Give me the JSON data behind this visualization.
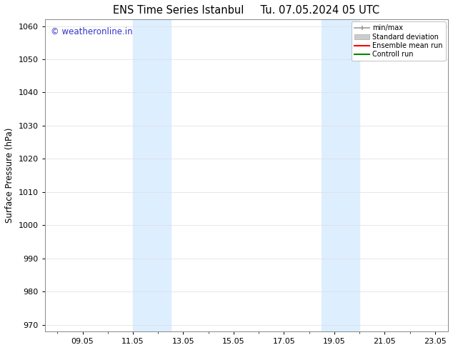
{
  "title": "ENS Time Series Istanbul     Tu. 07.05.2024 05 UTC",
  "ylabel": "Surface Pressure (hPa)",
  "ylim": [
    968,
    1062
  ],
  "yticks": [
    970,
    980,
    990,
    1000,
    1010,
    1020,
    1030,
    1040,
    1050,
    1060
  ],
  "xlim": [
    7.5,
    23.5
  ],
  "xtick_labels": [
    "09.05",
    "11.05",
    "13.05",
    "15.05",
    "17.05",
    "19.05",
    "21.05",
    "23.05"
  ],
  "xtick_positions": [
    9,
    11,
    13,
    15,
    17,
    19,
    21,
    23
  ],
  "shaded_bands": [
    {
      "x_start": 11.0,
      "x_end": 12.5,
      "color": "#ddeeff"
    },
    {
      "x_start": 18.5,
      "x_end": 20.0,
      "color": "#ddeeff"
    }
  ],
  "watermark_text": "© weatheronline.in",
  "watermark_color": "#3333cc",
  "watermark_fontsize": 8.5,
  "legend_items": [
    {
      "label": "min/max",
      "color": "#999999",
      "lw": 1.2,
      "style": "line_with_bars"
    },
    {
      "label": "Standard deviation",
      "color": "#cccccc",
      "lw": 5,
      "style": "thick"
    },
    {
      "label": "Ensemble mean run",
      "color": "#ff0000",
      "lw": 1.5,
      "style": "line"
    },
    {
      "label": "Controll run",
      "color": "#008800",
      "lw": 1.5,
      "style": "line"
    }
  ],
  "bg_color": "#ffffff",
  "plot_bg_color": "#ffffff",
  "title_fontsize": 10.5,
  "axis_fontsize": 8,
  "ylabel_fontsize": 8.5,
  "grid_color": "#dddddd",
  "spine_color": "#888888"
}
